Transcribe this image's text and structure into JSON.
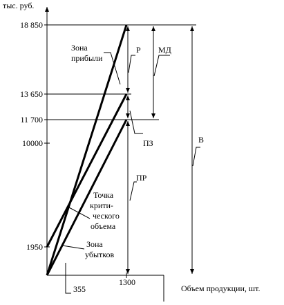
{
  "axes": {
    "y_unit": "тыс. руб.",
    "x_label": "Объем продукции, шт.",
    "y_ticks": [
      "18 850",
      "13 650",
      "11 700",
      "10000",
      "1950"
    ],
    "x_ticks": [
      "355",
      "1300"
    ]
  },
  "labels": {
    "profit_zone": [
      "Зона",
      "прибыли"
    ],
    "critical_point": [
      "Точка",
      "крити-",
      "ческого",
      "объема"
    ],
    "loss_zone": [
      "Зона",
      "убытков"
    ],
    "p": "Р",
    "md": "МД",
    "pz": "ПЗ",
    "pr": "ПР",
    "v": "В"
  }
}
